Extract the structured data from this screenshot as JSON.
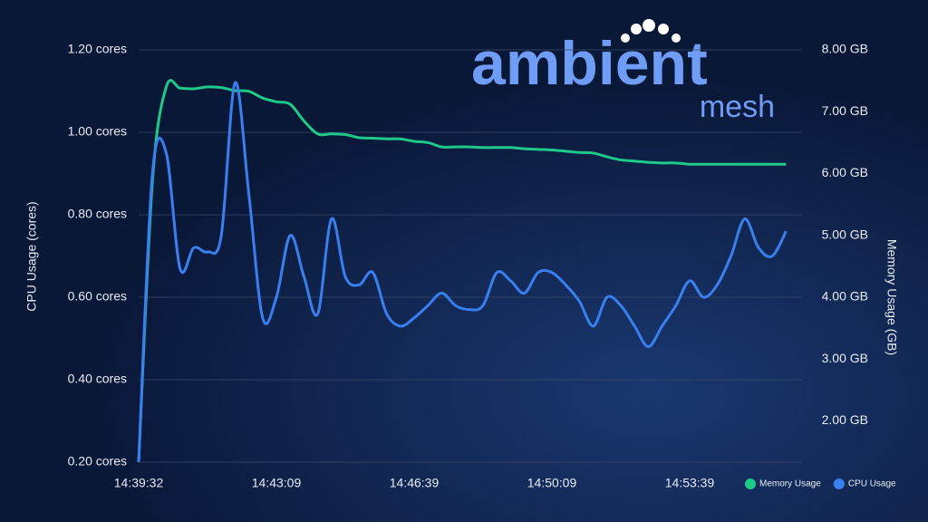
{
  "logo": {
    "word": "ambient",
    "sub": "mesh"
  },
  "chart_data": {
    "type": "line",
    "ylabel": "CPU Usage (cores)",
    "y2label": "Memory Usage (GB)",
    "categories": [
      "14:39:32",
      null,
      null,
      null,
      null,
      null,
      null,
      null,
      null,
      null,
      "14:43:09",
      null,
      null,
      null,
      null,
      null,
      null,
      null,
      null,
      null,
      "14:46:39",
      null,
      null,
      null,
      null,
      null,
      null,
      null,
      null,
      null,
      "14:50:09",
      null,
      null,
      null,
      null,
      null,
      null,
      null,
      null,
      null,
      "14:53:39",
      null,
      null,
      null,
      null,
      null,
      null,
      null
    ],
    "series": [
      {
        "name": "Memory Usage",
        "color": "#1fc98a",
        "axis": "y2",
        "values": [
          1.33,
          5.87,
          7.4,
          7.38,
          7.37,
          7.4,
          7.39,
          7.34,
          7.33,
          7.22,
          7.16,
          7.12,
          6.85,
          6.64,
          6.64,
          6.63,
          6.58,
          6.57,
          6.56,
          6.56,
          6.52,
          6.5,
          6.43,
          6.43,
          6.43,
          6.42,
          6.42,
          6.42,
          6.4,
          6.39,
          6.38,
          6.36,
          6.34,
          6.33,
          6.27,
          6.22,
          6.2,
          6.18,
          6.17,
          6.17,
          6.15,
          6.15,
          6.15,
          6.15,
          6.15,
          6.15,
          6.15,
          6.15
        ]
      },
      {
        "name": "CPU Usage",
        "color": "#3a7ff0",
        "values": [
          0.2,
          0.9,
          0.95,
          0.67,
          0.72,
          0.71,
          0.75,
          1.12,
          0.85,
          0.55,
          0.6,
          0.75,
          0.65,
          0.56,
          0.79,
          0.65,
          0.63,
          0.66,
          0.56,
          0.53,
          0.55,
          0.58,
          0.61,
          0.58,
          0.57,
          0.58,
          0.66,
          0.64,
          0.61,
          0.66,
          0.66,
          0.63,
          0.59,
          0.53,
          0.6,
          0.58,
          0.53,
          0.48,
          0.53,
          0.58,
          0.64,
          0.6,
          0.63,
          0.7,
          0.79,
          0.72,
          0.7,
          0.76
        ]
      }
    ],
    "ylim": [
      0.2,
      1.2
    ],
    "yticks": [
      {
        "value": 0.2,
        "label": "0.20 cores"
      },
      {
        "value": 0.4,
        "label": "0.40 cores"
      },
      {
        "value": 0.6,
        "label": "0.60 cores"
      },
      {
        "value": 0.8,
        "label": "0.80 cores"
      },
      {
        "value": 1.0,
        "label": "1.00 cores"
      },
      {
        "value": 1.2,
        "label": "1.20 cores"
      }
    ],
    "y2lim": [
      1.33,
      8
    ],
    "y2ticks": [
      {
        "value": 2,
        "label": "2.00 GB"
      },
      {
        "value": 3,
        "label": "3.00 GB"
      },
      {
        "value": 4,
        "label": "4.00 GB"
      },
      {
        "value": 5,
        "label": "5.00 GB"
      },
      {
        "value": 6,
        "label": "6.00 GB"
      },
      {
        "value": 7,
        "label": "7.00 GB"
      },
      {
        "value": 8,
        "label": "8.00 GB"
      }
    ],
    "grid": true
  }
}
